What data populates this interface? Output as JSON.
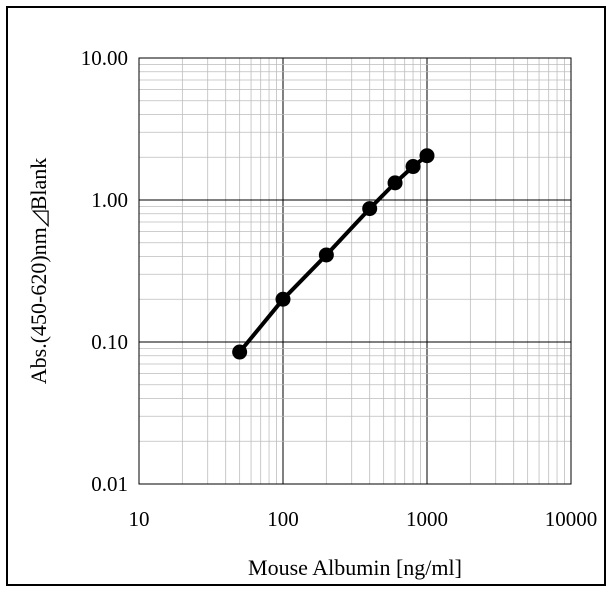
{
  "chart_data": {
    "type": "line",
    "title": "",
    "xlabel": "Mouse  Albumin [ng/ml]",
    "ylabel": "Abs.(450-620)nm◿Blank",
    "x_scale": "log",
    "y_scale": "log",
    "xlim": [
      10,
      10000
    ],
    "ylim": [
      0.01,
      10
    ],
    "x_ticks": [
      10,
      100,
      1000,
      10000
    ],
    "x_tick_labels": [
      "10",
      "100",
      "1000",
      "10000"
    ],
    "y_ticks": [
      0.01,
      0.1,
      1,
      10
    ],
    "y_tick_labels": [
      "0.01",
      "0.10",
      "1.00",
      "10.00"
    ],
    "grid": true,
    "legend": "none",
    "series": [
      {
        "x": [
          50,
          100,
          200,
          400,
          600,
          800,
          1000
        ],
        "y": [
          0.085,
          0.2,
          0.41,
          0.87,
          1.32,
          1.72,
          2.05
        ],
        "marker": "circle",
        "color": "#000000"
      }
    ]
  }
}
